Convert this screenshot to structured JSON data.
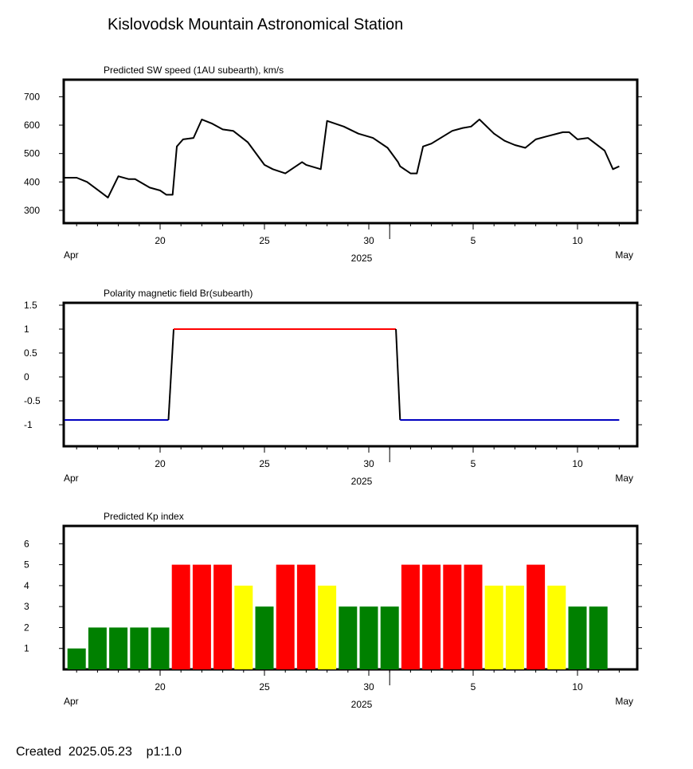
{
  "title": "Kislovodsk Mountain Astronomical Station",
  "footer": {
    "created_label": "Created",
    "created_date": "2025.05.23",
    "page": "p1:1.0"
  },
  "x_axis": {
    "start_day": "2025-04-15",
    "end_day": "2025-05-12",
    "ticks": [
      "20",
      "25",
      "30",
      "5",
      "10"
    ],
    "left_label": "Apr",
    "center_label": "2025",
    "right_label": "May"
  },
  "colors": {
    "positive": "#ff0000",
    "negative": "#0000c0",
    "kp_green": "#008000",
    "kp_yellow": "#ffff00",
    "kp_red": "#ff0000",
    "line": "#000000"
  },
  "chart_data": [
    {
      "type": "line",
      "title": "Predicted SW speed (1AU subearth), km/s",
      "ylim": [
        255,
        760
      ],
      "yticks": [
        "700",
        "600",
        "500",
        "400",
        "300"
      ],
      "x": [
        "Apr 15",
        "Apr 16",
        "Apr 16.5",
        "Apr 17.5",
        "Apr 18",
        "Apr 18.5",
        "Apr 18.8",
        "Apr 19.5",
        "Apr 20",
        "Apr 20.3",
        "Apr 20.6",
        "Apr 20.8",
        "Apr 21.1",
        "Apr 21.6",
        "Apr 22",
        "Apr 22.5",
        "Apr 23",
        "Apr 23.5",
        "Apr 24.2",
        "Apr 25",
        "Apr 25.4",
        "Apr 26",
        "Apr 26.8",
        "Apr 27",
        "Apr 27.7",
        "Apr 28",
        "Apr 28.8",
        "Apr 29.5",
        "Apr 30.2",
        "Apr 30.9",
        "May 1.4",
        "May 1.5",
        "May 2",
        "May 2.3",
        "May 2.6",
        "May 3",
        "May 4",
        "May 4.5",
        "May 4.9",
        "May 5.3",
        "May 6",
        "May 6.5",
        "May 7",
        "May 7.5",
        "May 8",
        "May 8.5",
        "May 9.3",
        "May 9.6",
        "May 10",
        "May 10.5",
        "May 11.3",
        "May 11.7",
        "May 12"
      ],
      "values": [
        415,
        415,
        400,
        345,
        420,
        410,
        410,
        380,
        370,
        355,
        355,
        525,
        550,
        555,
        620,
        605,
        585,
        580,
        540,
        460,
        445,
        430,
        470,
        460,
        445,
        615,
        595,
        570,
        555,
        520,
        470,
        455,
        430,
        430,
        525,
        535,
        580,
        590,
        595,
        620,
        570,
        545,
        530,
        520,
        550,
        560,
        575,
        575,
        550,
        555,
        510,
        445,
        455
      ]
    },
    {
      "type": "line",
      "title": "Polarity magnetic field  Br(subearth)",
      "ylim": [
        -1.45,
        1.55
      ],
      "yticks": [
        "1.5",
        "1",
        "0.5",
        "0",
        "-0.5",
        "-1"
      ],
      "segments": [
        {
          "sign": "negative",
          "x": [
            "Apr 15",
            "Apr 20.4"
          ],
          "values": [
            -0.9,
            -0.9
          ]
        },
        {
          "sign": "transition",
          "x": [
            "Apr 20.4",
            "Apr 20.65"
          ],
          "values": [
            -0.9,
            1
          ]
        },
        {
          "sign": "positive",
          "x": [
            "Apr 20.65",
            "May 1.3"
          ],
          "values": [
            1,
            1
          ]
        },
        {
          "sign": "transition",
          "x": [
            "May 1.3",
            "May 1.5"
          ],
          "values": [
            1,
            -0.9
          ]
        },
        {
          "sign": "negative",
          "x": [
            "May 1.5",
            "May 12"
          ],
          "values": [
            -0.9,
            -0.9
          ]
        }
      ]
    },
    {
      "type": "bar",
      "title": "Predicted Kp index",
      "ylim": [
        0,
        6.85
      ],
      "yticks": [
        "6",
        "5",
        "4",
        "3",
        "2",
        "1"
      ],
      "categories": [
        "Apr 16",
        "Apr 17",
        "Apr 18",
        "Apr 19",
        "Apr 20",
        "Apr 21",
        "Apr 22",
        "Apr 23",
        "Apr 24",
        "Apr 25",
        "Apr 26",
        "Apr 27",
        "Apr 28",
        "Apr 29",
        "Apr 30",
        "May 1",
        "May 2",
        "May 3",
        "May 4",
        "May 5",
        "May 6",
        "May 7",
        "May 8",
        "May 9",
        "May 10",
        "May 11"
      ],
      "values": [
        1,
        2,
        2,
        2,
        2,
        5,
        5,
        5,
        4,
        3,
        5,
        5,
        4,
        3,
        3,
        3,
        5,
        5,
        5,
        5,
        4,
        4,
        5,
        4,
        3,
        3
      ],
      "colors": [
        "green",
        "green",
        "green",
        "green",
        "green",
        "red",
        "red",
        "red",
        "yellow",
        "green",
        "red",
        "red",
        "yellow",
        "green",
        "green",
        "green",
        "red",
        "red",
        "red",
        "red",
        "yellow",
        "yellow",
        "red",
        "yellow",
        "green",
        "green"
      ]
    }
  ]
}
